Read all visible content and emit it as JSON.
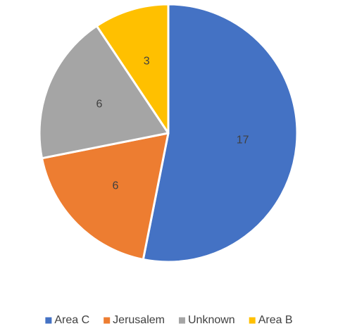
{
  "chart_data": {
    "type": "pie",
    "categories": [
      "Area C",
      "Jerusalem",
      "Unknown",
      "Area B"
    ],
    "values": [
      17,
      6,
      6,
      3
    ],
    "colors": [
      "#4472c4",
      "#ed7d31",
      "#a5a5a5",
      "#ffc000"
    ],
    "legend": "bottom"
  }
}
